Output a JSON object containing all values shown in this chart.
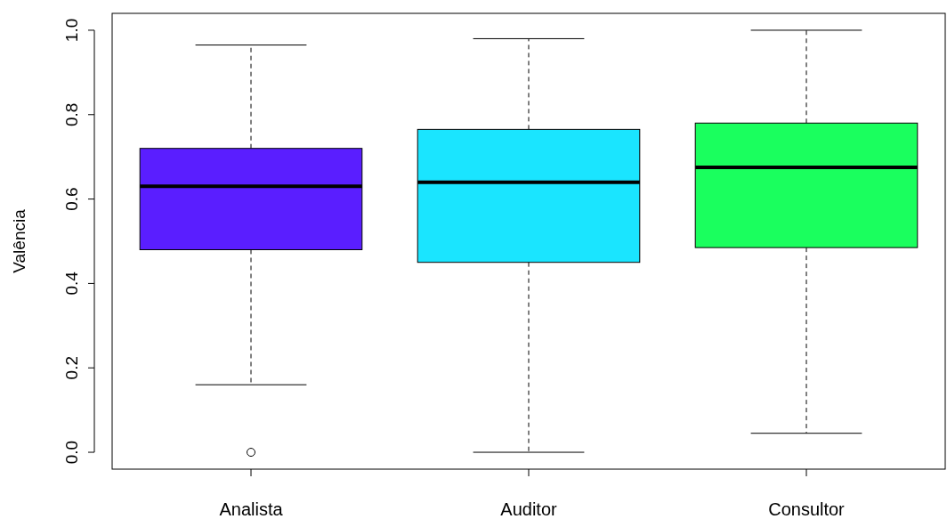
{
  "chart_data": {
    "type": "box",
    "ylabel": "Valência",
    "categories": [
      "Analista",
      "Auditor",
      "Consultor"
    ],
    "ylim": [
      -0.04,
      1.04
    ],
    "yticks": [
      {
        "value": 0,
        "label": "0.0"
      },
      {
        "value": 0.2,
        "label": "0.2"
      },
      {
        "value": 0.4,
        "label": "0.4"
      },
      {
        "value": 0.6,
        "label": "0.6"
      },
      {
        "value": 0.8,
        "label": "0.8"
      },
      {
        "value": 1,
        "label": "1.0"
      }
    ],
    "colors": [
      "#5a1eff",
      "#1ae5ff",
      "#1aff5e"
    ],
    "boxes": [
      {
        "low": 0.16,
        "q1": 0.48,
        "median": 0.63,
        "q3": 0.72,
        "high": 0.965,
        "outliers": [
          0.0
        ]
      },
      {
        "low": 0.0,
        "q1": 0.45,
        "median": 0.64,
        "q3": 0.765,
        "high": 0.98
      },
      {
        "low": 0.045,
        "q1": 0.485,
        "median": 0.675,
        "q3": 0.78,
        "high": 1.0
      }
    ]
  }
}
